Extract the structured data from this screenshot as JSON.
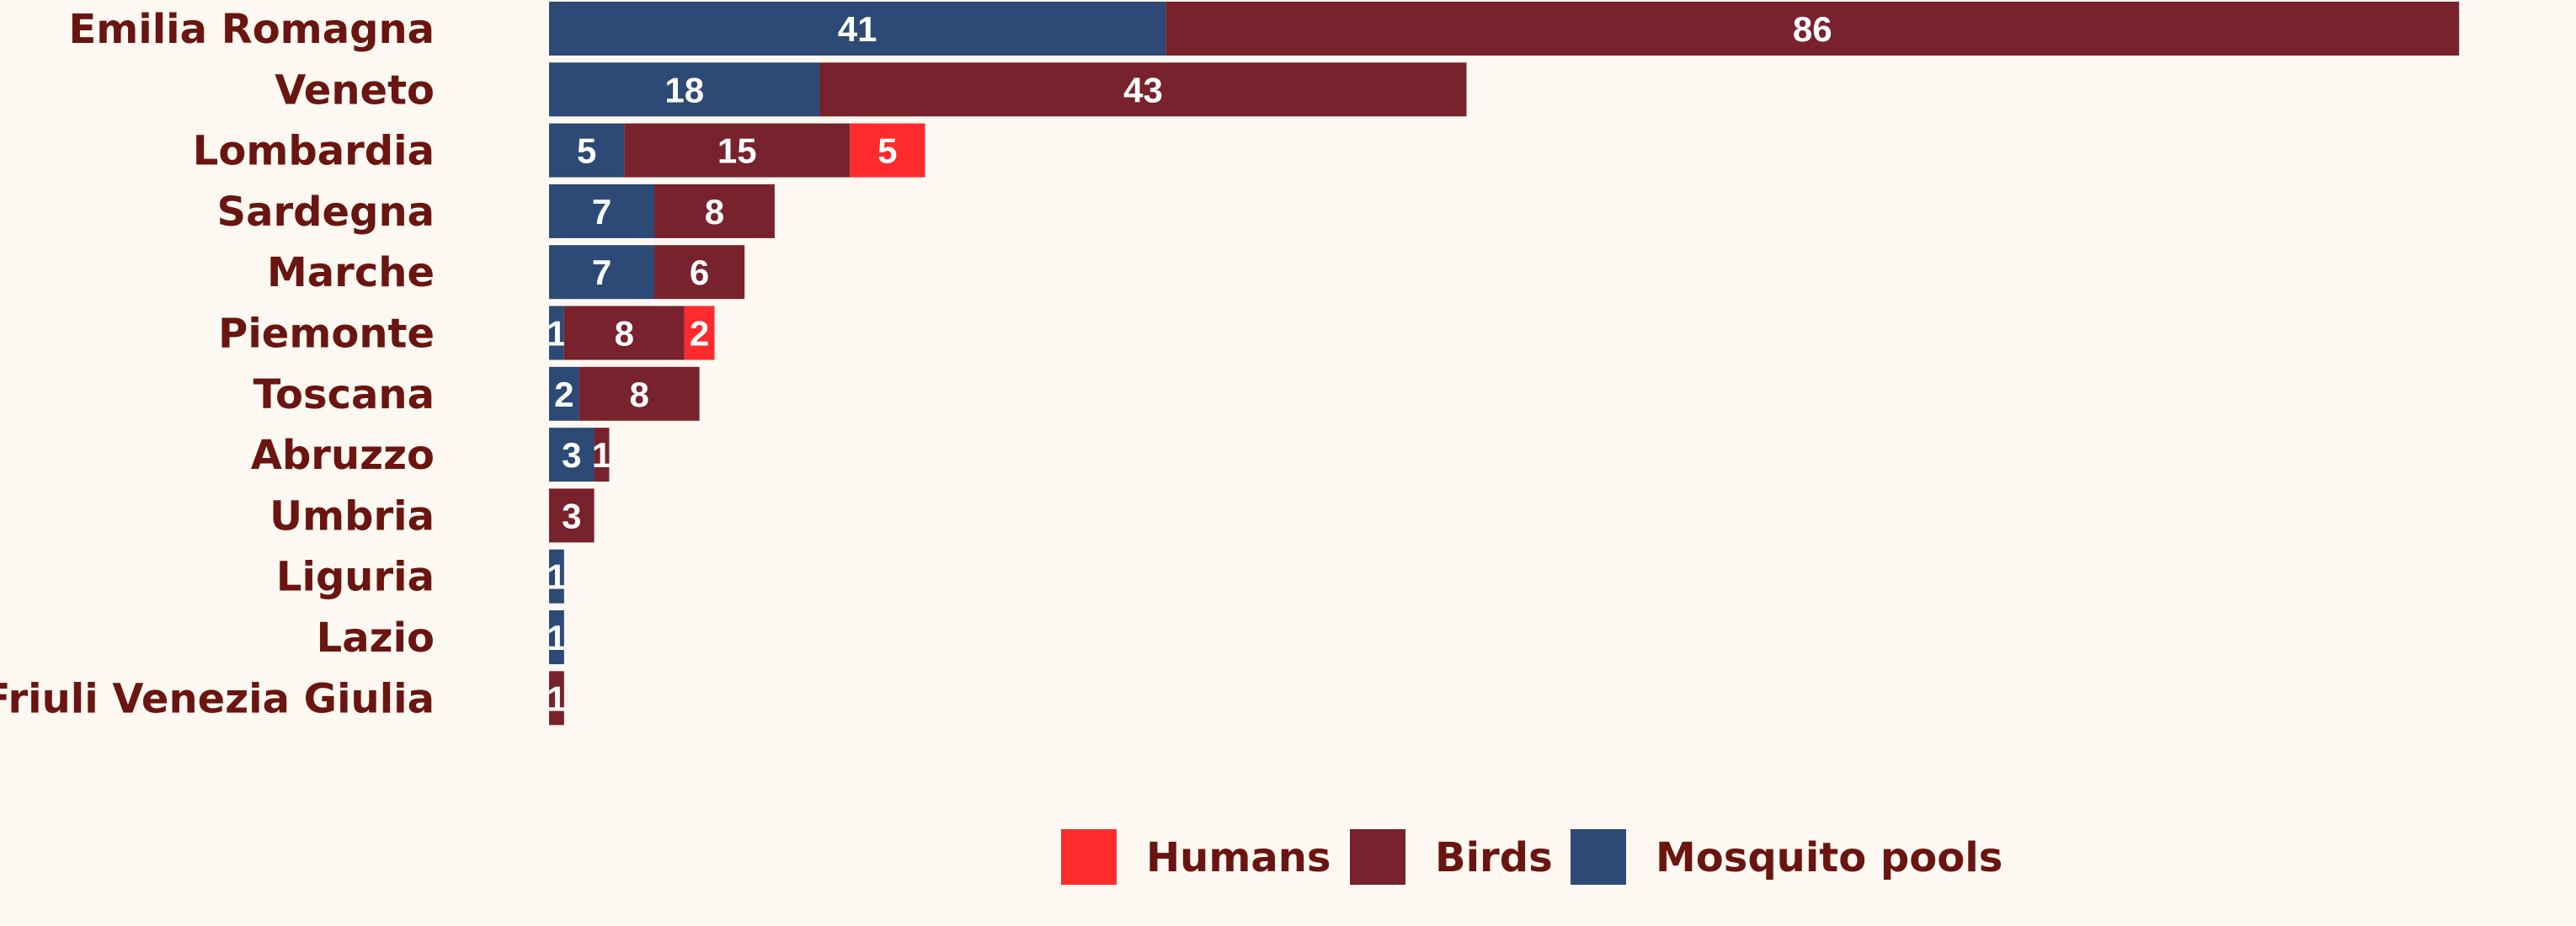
{
  "chart_data": {
    "type": "bar",
    "orientation": "horizontal",
    "stacked": true,
    "categories": [
      "Emilia Romagna",
      "Veneto",
      "Lombardia",
      "Sardegna",
      "Marche",
      "Piemonte",
      "Toscana",
      "Abruzzo",
      "Umbria",
      "Liguria",
      "Lazio",
      "Friuli Venezia Giulia"
    ],
    "series": [
      {
        "name": "Mosquito pools",
        "color": "#2c4a75",
        "values": [
          41,
          18,
          5,
          7,
          7,
          1,
          2,
          3,
          0,
          1,
          1,
          0
        ]
      },
      {
        "name": "Birds",
        "color": "#77222c",
        "values": [
          86,
          43,
          15,
          8,
          6,
          8,
          8,
          1,
          3,
          0,
          0,
          1
        ]
      },
      {
        "name": "Humans",
        "color": "#fe2a2c",
        "values": [
          0,
          0,
          5,
          0,
          0,
          2,
          0,
          0,
          0,
          0,
          0,
          0
        ]
      }
    ],
    "legend": {
      "position": "bottom",
      "order": [
        "Humans",
        "Birds",
        "Mosquito pools"
      ]
    },
    "grid": false,
    "label_color": "#6a1510",
    "value_label_color": "#ffffff"
  }
}
